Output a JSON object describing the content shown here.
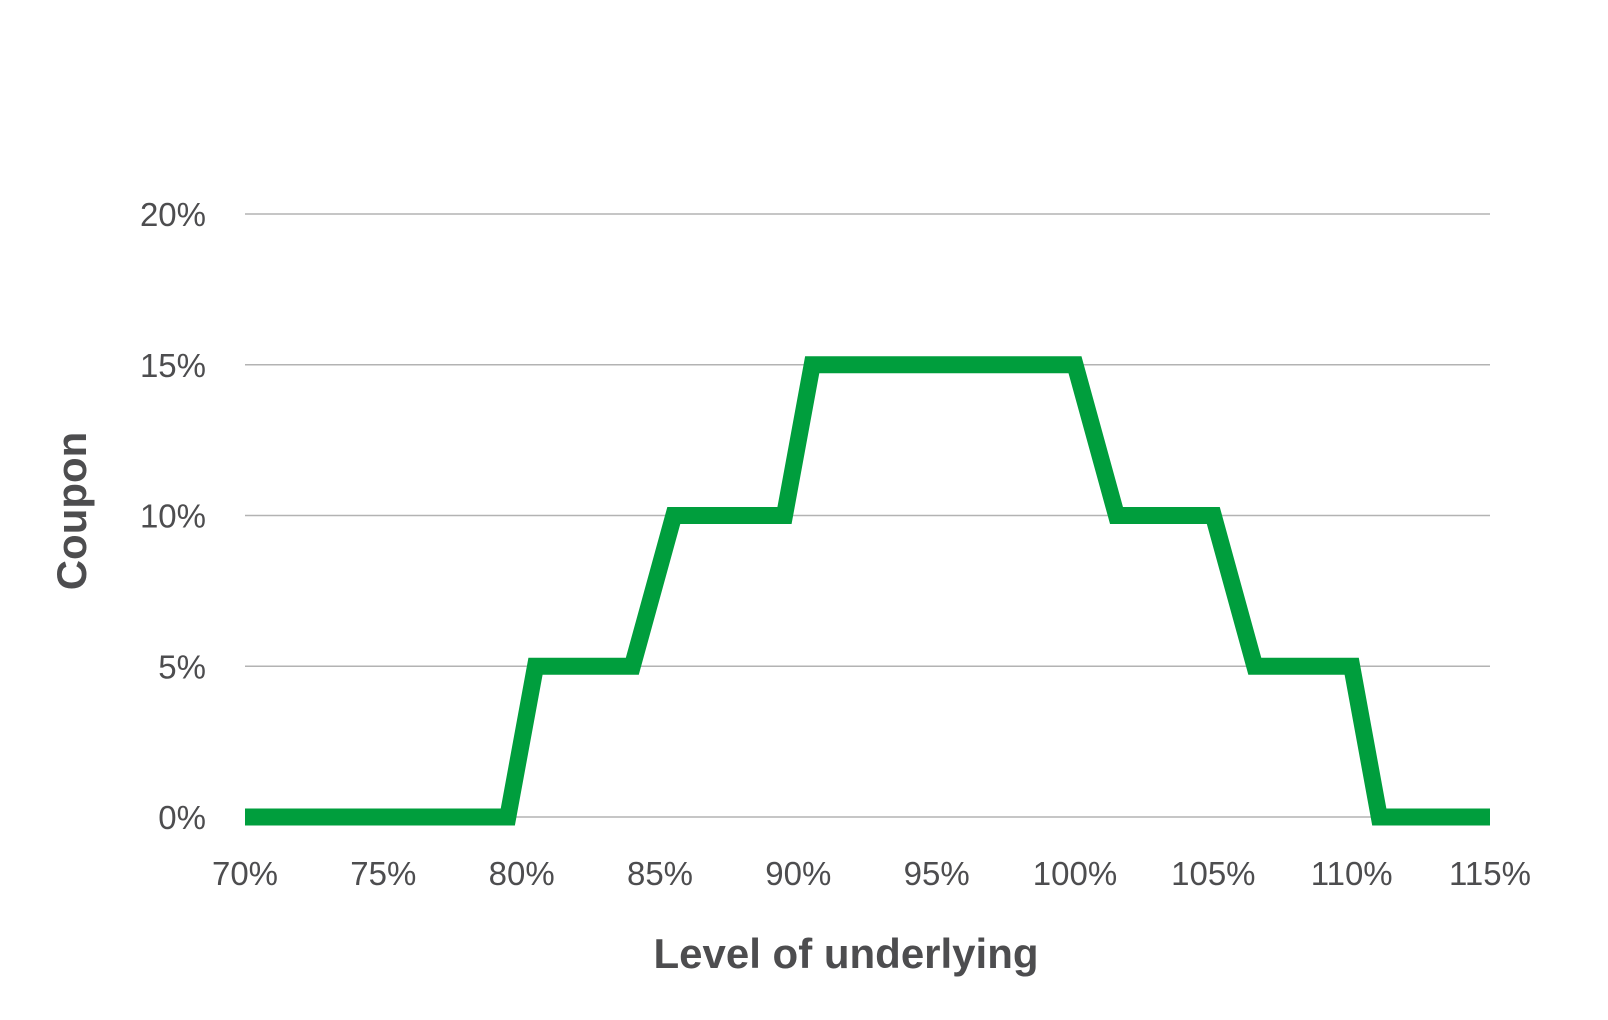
{
  "chart_data": {
    "type": "line",
    "title": "",
    "xlabel": "Level of underlying",
    "ylabel": "Coupon",
    "x_ticks": [
      "70%",
      "75%",
      "80%",
      "85%",
      "90%",
      "95%",
      "100%",
      "105%",
      "110%",
      "115%"
    ],
    "y_ticks": [
      "0%",
      "5%",
      "10%",
      "15%",
      "20%"
    ],
    "xlim": [
      70,
      115
    ],
    "ylim": [
      0,
      20
    ],
    "grid": "horizontal",
    "series": [
      {
        "color": "#009e3d",
        "points": [
          [
            70,
            0
          ],
          [
            79.5,
            0
          ],
          [
            80.5,
            5
          ],
          [
            84,
            5
          ],
          [
            85.5,
            10
          ],
          [
            89.5,
            10
          ],
          [
            90.5,
            15
          ],
          [
            100,
            15
          ],
          [
            101.5,
            10
          ],
          [
            105,
            10
          ],
          [
            106.5,
            5
          ],
          [
            110,
            5
          ],
          [
            111,
            0
          ],
          [
            115,
            0
          ]
        ]
      }
    ]
  }
}
